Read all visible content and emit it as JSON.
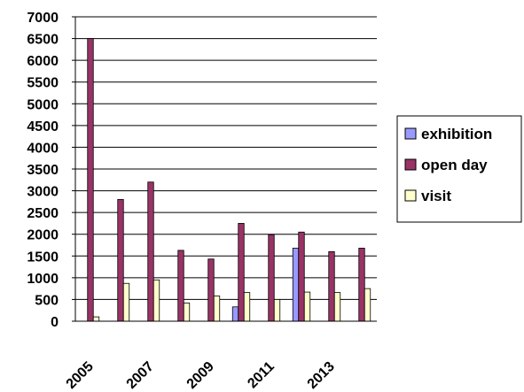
{
  "chart_data": {
    "type": "bar",
    "categories": [
      "2005",
      "2006",
      "2007",
      "2008",
      "2009",
      "2010",
      "2011",
      "2012",
      "2013",
      "2014"
    ],
    "x_tick_labels": [
      "2005",
      "2007",
      "2009",
      "2011",
      "2013"
    ],
    "y_ticks": [
      "0",
      "500",
      "1000",
      "1500",
      "2000",
      "2500",
      "3000",
      "3500",
      "4000",
      "4500",
      "5000",
      "5500",
      "6000",
      "6500",
      "7000"
    ],
    "ylim": [
      0,
      7000
    ],
    "grid": "horizontal",
    "legend_position": "right",
    "series": [
      {
        "name": "exhibition",
        "color": "#9999ff",
        "values": [
          0,
          0,
          0,
          0,
          0,
          330,
          0,
          1680,
          0,
          0
        ]
      },
      {
        "name": "open day",
        "color": "#993366",
        "values": [
          6500,
          2800,
          3200,
          1630,
          1430,
          2250,
          1990,
          2050,
          1600,
          1680
        ]
      },
      {
        "name": "visit",
        "color": "#ffffcc",
        "values": [
          100,
          870,
          950,
          420,
          580,
          660,
          500,
          670,
          660,
          750
        ]
      }
    ]
  }
}
